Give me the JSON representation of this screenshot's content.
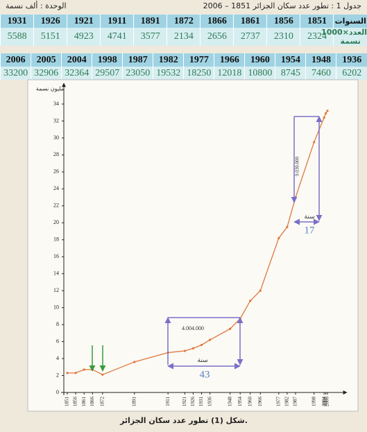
{
  "header": {
    "title": "جدول 1 : تطور عدد سكان الجزائر 1851 – 2006",
    "unit": "الوحدة : ألف نسمة"
  },
  "table1": {
    "row_labels": [
      "السنوات",
      "العدد×1000 نسمة"
    ],
    "years": [
      "1851",
      "1856",
      "1861",
      "1866",
      "1872",
      "1891",
      "1911",
      "1921",
      "1926",
      "1931"
    ],
    "values": [
      "2324",
      "2310",
      "2737",
      "2656",
      "2134",
      "3577",
      "4741",
      "4923",
      "5151",
      "5588"
    ]
  },
  "table2": {
    "years": [
      "1936",
      "1948",
      "1954",
      "1960",
      "1966",
      "1977",
      "1982",
      "1987",
      "1998",
      "2004",
      "2005",
      "2006"
    ],
    "values": [
      "6202",
      "7460",
      "8745",
      "10800",
      "12018",
      "18250",
      "19532",
      "23050",
      "29507",
      "32364",
      "32906",
      "33200"
    ]
  },
  "chart_data": {
    "type": "line",
    "y_label": "مليون نسمة",
    "x": [
      1851,
      1856,
      1861,
      1866,
      1872,
      1891,
      1911,
      1921,
      1926,
      1931,
      1936,
      1948,
      1954,
      1960,
      1966,
      1977,
      1982,
      1987,
      1998,
      2004,
      2005,
      2006
    ],
    "series": [
      {
        "color": "#e0763a",
        "values": [
          2.3,
          2.3,
          2.7,
          2.7,
          2.1,
          3.6,
          4.7,
          4.9,
          5.2,
          5.6,
          6.2,
          7.5,
          8.7,
          10.8,
          12.0,
          18.2,
          19.5,
          23.0,
          29.5,
          32.4,
          32.9,
          33.2
        ]
      }
    ],
    "xlim": [
      1851,
      2006
    ],
    "ylim": [
      0,
      34
    ],
    "xticks": [
      1851,
      1856,
      1861,
      1866,
      1872,
      1891,
      1911,
      1921,
      1926,
      1931,
      1936,
      1948,
      1954,
      1960,
      1966,
      1977,
      1982,
      1987,
      1998,
      2004,
      2005,
      2006
    ],
    "yticks": [
      0,
      2,
      4,
      6,
      8,
      10,
      12,
      14,
      16,
      18,
      20,
      22,
      24,
      26,
      28,
      30,
      32,
      34
    ],
    "annotations": [
      "4.004.000",
      "سنة",
      "43",
      "9.030.000",
      "سنة",
      "17"
    ],
    "caption": "شكل (1) تطور عدد سكان الجزائر."
  }
}
